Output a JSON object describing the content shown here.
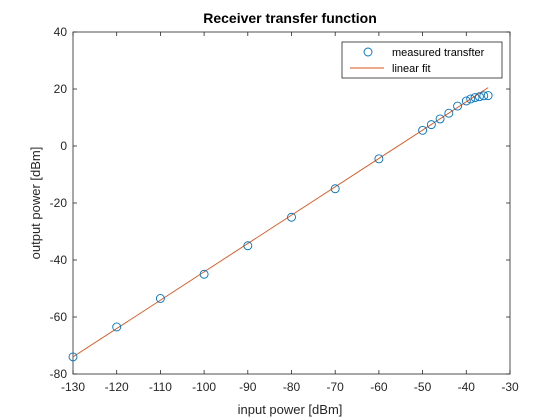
{
  "chart_data": {
    "type": "scatter",
    "title": "Receiver transfer function",
    "xlabel": "input power [dBm]",
    "ylabel": "output power [dBm]",
    "xlim": [
      -130,
      -30
    ],
    "ylim": [
      -80,
      40
    ],
    "xticks": [
      -130,
      -120,
      -110,
      -100,
      -90,
      -80,
      -70,
      -60,
      -50,
      -40,
      -30
    ],
    "yticks": [
      -80,
      -60,
      -40,
      -20,
      0,
      20,
      40
    ],
    "grid": false,
    "legend_position": "top-right",
    "series": [
      {
        "name": "measured transfter",
        "kind": "markers",
        "marker": "circle",
        "color": "#0072BD",
        "x": [
          -130,
          -120,
          -110,
          -100,
          -90,
          -80,
          -70,
          -60,
          -50,
          -48,
          -46,
          -44,
          -42,
          -40,
          -39,
          -38,
          -37,
          -36,
          -35
        ],
        "y": [
          -74,
          -63.5,
          -53.5,
          -45,
          -35,
          -25,
          -15,
          -4.5,
          5.5,
          7.5,
          9.5,
          11.5,
          14,
          15.8,
          16.5,
          17,
          17.3,
          17.6,
          17.7
        ]
      },
      {
        "name": "linear fit",
        "kind": "line",
        "color": "#D95319",
        "x": [
          -130,
          -35
        ],
        "y": [
          -74,
          20.5
        ]
      }
    ]
  }
}
